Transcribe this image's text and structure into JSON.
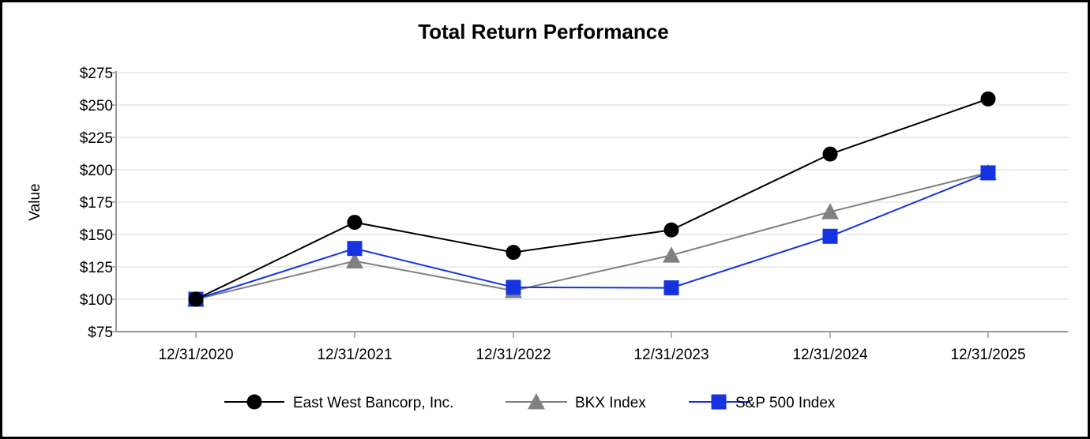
{
  "chart_data": {
    "type": "line",
    "title": "Total Return Performance",
    "xlabel": "",
    "ylabel": "Value",
    "categories": [
      "12/31/2020",
      "12/31/2021",
      "12/31/2022",
      "12/31/2023",
      "12/31/2024",
      "12/31/2025"
    ],
    "ylim": [
      75,
      275
    ],
    "yticks": [
      75,
      100,
      125,
      150,
      175,
      200,
      225,
      250,
      275
    ],
    "ytick_labels": [
      "$75",
      "$100",
      "$125",
      "$150",
      "$175",
      "$200",
      "$225",
      "$250",
      "$275"
    ],
    "grid": true,
    "legend_position": "bottom",
    "series": [
      {
        "name": "East West Bancorp, Inc.",
        "values": [
          100,
          159.4,
          136.2,
          153.5,
          212.1,
          254.7
        ],
        "color": "#000000",
        "marker": "circle"
      },
      {
        "name": "BKX Index",
        "values": [
          100,
          129.5,
          106.6,
          134.0,
          167.5,
          197.8
        ],
        "color": "#808080",
        "marker": "triangle"
      },
      {
        "name": "S&P 500 Index",
        "values": [
          100,
          139.2,
          109.2,
          108.8,
          148.6,
          197.6
        ],
        "color": "#1533e0",
        "marker": "square"
      }
    ]
  }
}
